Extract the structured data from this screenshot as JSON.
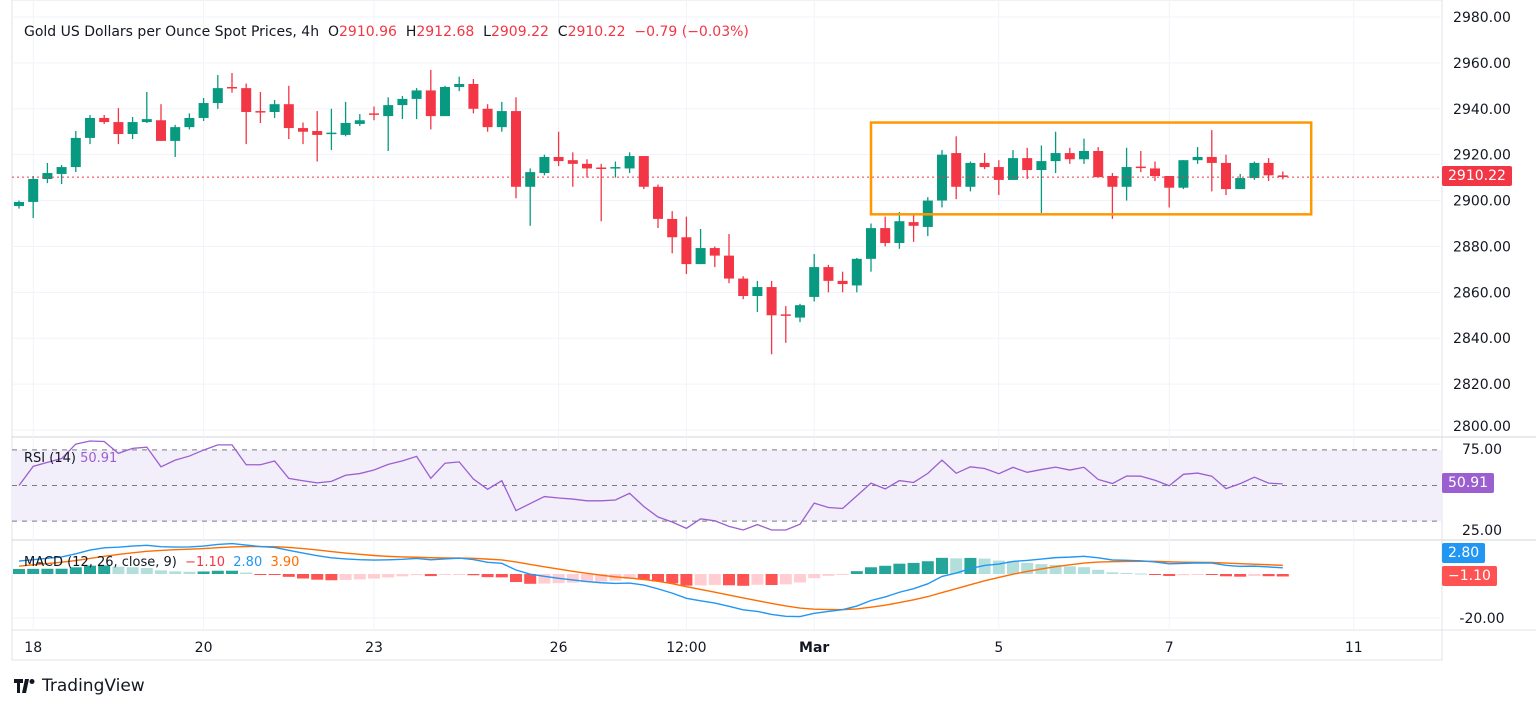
{
  "header": {
    "title": "Gold US Dollars per Ounce Spot Prices, 4h",
    "o_label": "O",
    "open": "2910.96",
    "h_label": "H",
    "high": "2912.68",
    "l_label": "L",
    "low": "2909.22",
    "c_label": "C",
    "close": "2910.22",
    "change": "−0.79 (−0.03%)"
  },
  "rsi_legend": {
    "name": "RSI (14)",
    "value": "50.91"
  },
  "macd_legend": {
    "name": "MACD (12, 26, close, 9)",
    "hist": "−1.10",
    "macd": "2.80",
    "signal": "3.90"
  },
  "price_label": "2910.22",
  "rsi_label": "50.91",
  "macd_label": "2.80",
  "hist_label": "−1.10",
  "branding": "TradingView",
  "colors": {
    "up": "#089981",
    "down": "#f23645",
    "box": "#ff9800",
    "rsi": "#9c5fd0",
    "macd": "#2196f3",
    "signal": "#ff6d00"
  },
  "chart_data": {
    "type": "candlestick",
    "title": "Gold US Dollars per Ounce Spot Prices, 4h",
    "interval": "4h",
    "ylim": [
      2800,
      2980
    ],
    "yticks": [
      "2800.00",
      "2820.00",
      "2840.00",
      "2860.00",
      "2880.00",
      "2900.00",
      "2920.00",
      "2940.00",
      "2960.00",
      "2980.00"
    ],
    "xticks": [
      {
        "bar": 1,
        "label": "18"
      },
      {
        "bar": 13,
        "label": "20"
      },
      {
        "bar": 25,
        "label": "23"
      },
      {
        "bar": 38,
        "label": "26"
      },
      {
        "bar": 47,
        "label": "12:00"
      },
      {
        "bar": 56,
        "label": "Mar"
      },
      {
        "bar": 69,
        "label": "5"
      },
      {
        "bar": 81,
        "label": "7"
      },
      {
        "bar": 94,
        "label": "11"
      }
    ],
    "last_price": 2910.22,
    "ohlc": [
      [
        2897.6,
        2900,
        2896.5,
        2899.4
      ],
      [
        2899.4,
        2910.7,
        2892.4,
        2909.4
      ],
      [
        2909.4,
        2916.4,
        2907.6,
        2912
      ],
      [
        2911.6,
        2915.5,
        2907.2,
        2914.6
      ],
      [
        2914.6,
        2930.3,
        2912.4,
        2927.3
      ],
      [
        2927.3,
        2937.3,
        2924.6,
        2936
      ],
      [
        2936,
        2937.3,
        2933.4,
        2934.2
      ],
      [
        2934.2,
        2940.3,
        2924.6,
        2929
      ],
      [
        2929,
        2936.4,
        2926.8,
        2934.2
      ],
      [
        2934.2,
        2947.3,
        2933.8,
        2935.5
      ],
      [
        2935,
        2942,
        2926,
        2926
      ],
      [
        2926,
        2933,
        2919,
        2932
      ],
      [
        2932,
        2938,
        2931,
        2936
      ],
      [
        2936,
        2944.7,
        2934.7,
        2942.5
      ],
      [
        2942.5,
        2954.7,
        2940,
        2949
      ],
      [
        2949.5,
        2955.6,
        2947,
        2949
      ],
      [
        2949,
        2951,
        2924.6,
        2938.6
      ],
      [
        2939,
        2947.3,
        2933.8,
        2938.6
      ],
      [
        2938.6,
        2943.8,
        2936,
        2942
      ],
      [
        2942,
        2950,
        2926.8,
        2931.6
      ],
      [
        2931.6,
        2934,
        2924.6,
        2930
      ],
      [
        2930.3,
        2939,
        2917,
        2928.6
      ],
      [
        2929,
        2940,
        2922,
        2929.6
      ],
      [
        2928.6,
        2943,
        2928,
        2933.8
      ],
      [
        2933.4,
        2937.7,
        2932.5,
        2935
      ],
      [
        2938,
        2941,
        2935,
        2937.5
      ],
      [
        2936.8,
        2945,
        2921.6,
        2941.6
      ],
      [
        2941.6,
        2945.6,
        2935.5,
        2944.3
      ],
      [
        2944.3,
        2949,
        2935.5,
        2948
      ],
      [
        2948,
        2956.9,
        2931,
        2936.8
      ],
      [
        2936.8,
        2950,
        2936.8,
        2949.5
      ],
      [
        2949.5,
        2954,
        2947.7,
        2950.8
      ],
      [
        2950.8,
        2953,
        2938,
        2940
      ],
      [
        2940,
        2942,
        2930,
        2932
      ],
      [
        2932,
        2943,
        2930,
        2939
      ],
      [
        2939,
        2945,
        2901,
        2906
      ],
      [
        2906,
        2914,
        2889,
        2912.4
      ],
      [
        2912,
        2920,
        2911,
        2919
      ],
      [
        2919,
        2930,
        2915,
        2917.2
      ],
      [
        2917.6,
        2921,
        2906,
        2916
      ],
      [
        2916,
        2918,
        2910,
        2914
      ],
      [
        2914.4,
        2916,
        2891,
        2914
      ],
      [
        2914,
        2917,
        2910,
        2914.6
      ],
      [
        2914,
        2921,
        2912,
        2919.4
      ],
      [
        2919.4,
        2919.4,
        2905,
        2906
      ],
      [
        2906,
        2907,
        2888,
        2892
      ],
      [
        2892,
        2895.4,
        2877,
        2884
      ],
      [
        2884,
        2893,
        2868,
        2872.3
      ],
      [
        2872.3,
        2887.6,
        2872.3,
        2879.3
      ],
      [
        2879.3,
        2880,
        2871,
        2876
      ],
      [
        2876,
        2885.4,
        2864,
        2866
      ],
      [
        2866,
        2867,
        2857,
        2858.4
      ],
      [
        2858.4,
        2865,
        2851.4,
        2862.3
      ],
      [
        2862.3,
        2865,
        2833,
        2850
      ],
      [
        2850.4,
        2854,
        2838,
        2850
      ],
      [
        2849,
        2855,
        2847,
        2854.4
      ],
      [
        2858,
        2876.7,
        2856,
        2871
      ],
      [
        2871,
        2872,
        2860,
        2865
      ],
      [
        2865,
        2869,
        2860,
        2863.6
      ],
      [
        2863,
        2875,
        2860,
        2874.6
      ],
      [
        2874.6,
        2890,
        2869,
        2888
      ],
      [
        2888,
        2893,
        2880,
        2881.5
      ],
      [
        2881.5,
        2895,
        2879,
        2891
      ],
      [
        2890.6,
        2893.7,
        2882,
        2889
      ],
      [
        2888.5,
        2901.5,
        2884.5,
        2900
      ],
      [
        2900,
        2922,
        2897,
        2920
      ],
      [
        2920.7,
        2928,
        2900.6,
        2906
      ],
      [
        2906,
        2917,
        2904,
        2916.4
      ],
      [
        2916.4,
        2920.7,
        2913.7,
        2914.6
      ],
      [
        2914.6,
        2917.6,
        2902.4,
        2909
      ],
      [
        2909,
        2922,
        2909,
        2918.5
      ],
      [
        2918.5,
        2923,
        2909.4,
        2913.3
      ],
      [
        2913.3,
        2924,
        2894.6,
        2917.2
      ],
      [
        2917.2,
        2930,
        2912,
        2920.7
      ],
      [
        2920.7,
        2923,
        2916,
        2918
      ],
      [
        2918,
        2927,
        2916,
        2921.6
      ],
      [
        2921.6,
        2923.3,
        2910.2,
        2910.2
      ],
      [
        2910.7,
        2912,
        2892,
        2906
      ],
      [
        2906,
        2923,
        2900,
        2914.6
      ],
      [
        2914.8,
        2921.6,
        2912.4,
        2914.4
      ],
      [
        2914,
        2917,
        2908.5,
        2910.7
      ],
      [
        2910.7,
        2910.7,
        2897,
        2905.6
      ],
      [
        2905.6,
        2917.6,
        2905,
        2917.6
      ],
      [
        2917.6,
        2923.3,
        2916,
        2919
      ],
      [
        2919,
        2930.7,
        2904,
        2916.4
      ],
      [
        2916.4,
        2920,
        2902.4,
        2905
      ],
      [
        2905,
        2911.6,
        2905,
        2909.8
      ],
      [
        2909.8,
        2917,
        2909,
        2916.4
      ],
      [
        2916.4,
        2918.5,
        2908.5,
        2911
      ],
      [
        2910.96,
        2912.68,
        2909.22,
        2910.22
      ]
    ],
    "annotation_box": {
      "bar_start": 60,
      "bar_end": 91,
      "price_top": 2934,
      "price_bottom": 2894
    },
    "rsi": {
      "period": 14,
      "levels": [
        70,
        50,
        30
      ],
      "ylim": [
        25,
        75
      ],
      "yticks": [
        "75.00",
        "25.00"
      ],
      "last": 50.91
    },
    "macd": {
      "fast": 12,
      "slow": 26,
      "signal": 9,
      "ytick": "-20.00",
      "ytick_value": -20,
      "last_macd": 2.8,
      "last_signal": 3.9,
      "last_hist": -1.1
    }
  }
}
